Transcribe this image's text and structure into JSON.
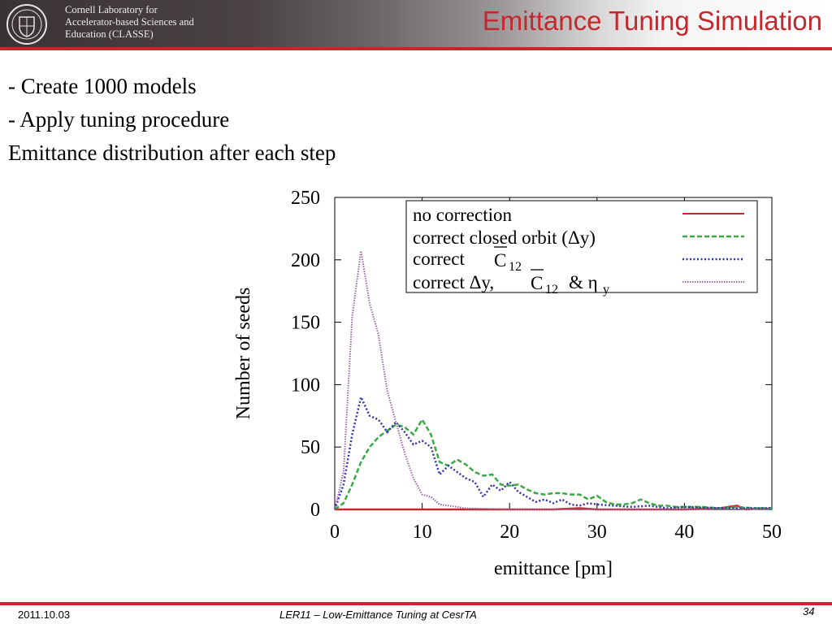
{
  "header": {
    "logo_lines": [
      "Cornell Laboratory for",
      "Accelerator-based Sciences and",
      "Education (CLASSE)"
    ],
    "title": "Emittance Tuning Simulation",
    "accent_color": "#c4282c"
  },
  "bullets": [
    "- Create 1000 models",
    "- Apply tuning procedure",
    "Emittance distribution after each step"
  ],
  "footer": {
    "date": "2011.10.03",
    "center": "LER11 – Low-Emittance Tuning at CesrTA",
    "page": "34"
  },
  "chart_data": {
    "type": "line",
    "title": "",
    "xlabel": "emittance [pm]",
    "ylabel": "Number of seeds",
    "xlim": [
      0,
      50
    ],
    "ylim": [
      0,
      250
    ],
    "xticks": [
      0,
      10,
      20,
      30,
      40,
      50
    ],
    "yticks": [
      0,
      50,
      100,
      150,
      200,
      250
    ],
    "grid": false,
    "legend_position": "top-right",
    "series": [
      {
        "name": "no correction",
        "color": "#c4282c",
        "dash": "solid",
        "x": [
          0,
          10,
          20,
          25,
          28,
          30,
          35,
          40,
          44,
          46,
          47,
          49,
          50
        ],
        "y": [
          0,
          0,
          0,
          0,
          1,
          0,
          0,
          0,
          1,
          3,
          0,
          1,
          0
        ]
      },
      {
        "name": "correct closed orbit (Δy)",
        "color": "#3aa843",
        "dash": "dashed",
        "x": [
          0,
          1,
          2,
          3,
          4,
          5,
          6,
          7,
          8,
          9,
          10,
          11,
          12,
          13,
          14,
          15,
          16,
          17,
          18,
          19,
          20,
          21,
          22,
          23,
          24,
          25,
          26,
          27,
          28,
          29,
          30,
          31,
          32,
          33,
          34,
          35,
          36,
          37,
          38,
          39,
          40,
          42,
          44,
          46,
          48,
          50
        ],
        "y": [
          0,
          5,
          20,
          38,
          50,
          58,
          63,
          68,
          66,
          60,
          72,
          60,
          38,
          35,
          40,
          36,
          30,
          27,
          28,
          20,
          19,
          20,
          16,
          13,
          12,
          13,
          13,
          12,
          12,
          8,
          11,
          6,
          4,
          4,
          5,
          8,
          5,
          3,
          3,
          2,
          2,
          2,
          1,
          2,
          1,
          1
        ]
      },
      {
        "name": "correct C12",
        "color": "#3235b0",
        "dash": "dotted",
        "x": [
          0,
          1,
          2,
          3,
          4,
          5,
          6,
          7,
          8,
          9,
          10,
          11,
          12,
          13,
          14,
          15,
          16,
          17,
          18,
          19,
          20,
          21,
          22,
          23,
          24,
          25,
          26,
          27,
          28,
          29,
          30,
          32,
          34,
          36,
          38,
          40,
          44,
          48,
          50
        ],
        "y": [
          0,
          20,
          60,
          90,
          75,
          72,
          62,
          70,
          62,
          52,
          55,
          50,
          28,
          35,
          30,
          25,
          22,
          10,
          20,
          15,
          22,
          14,
          10,
          6,
          8,
          5,
          8,
          4,
          3,
          5,
          4,
          3,
          2,
          3,
          1,
          2,
          1,
          1,
          1
        ]
      },
      {
        "name": "correct Δy, C12 & ηy",
        "color": "#9a6aa4",
        "dash": "dotted",
        "x": [
          0,
          1,
          2,
          3,
          4,
          5,
          6,
          7,
          8,
          9,
          10,
          11,
          12,
          13,
          14,
          15,
          20,
          30,
          40,
          50
        ],
        "y": [
          0,
          30,
          155,
          207,
          165,
          140,
          95,
          70,
          45,
          25,
          12,
          10,
          4,
          3,
          2,
          1,
          0,
          0,
          0,
          0
        ]
      }
    ],
    "legend_text": {
      "l1": "no correction",
      "l2": "correct closed orbit (Δy)",
      "l3a": "correct",
      "l3b": "C",
      "l3c": "12",
      "l4a": "correct Δy,",
      "l4b": "C",
      "l4c": "12",
      "l4d": "& η",
      "l4e": "y"
    }
  }
}
